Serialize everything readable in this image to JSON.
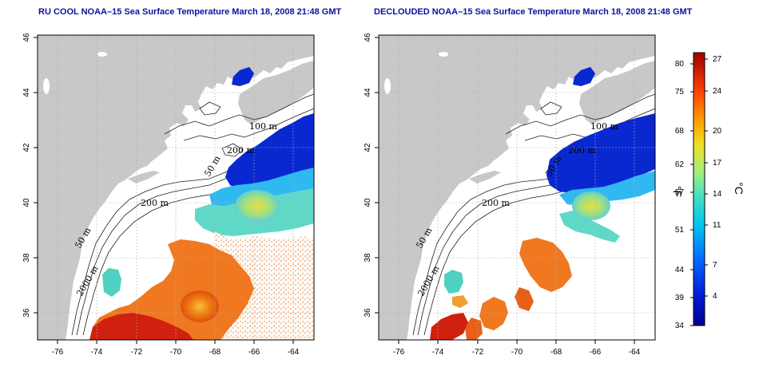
{
  "panels": [
    {
      "title": "RU COOL NOAA–15 Sea Surface Temperature March 18, 2008 21:48 GMT"
    },
    {
      "title": "DECLOUDED NOAA–15 Sea Surface Temperature March 18, 2008 21:48 GMT"
    }
  ],
  "lon_ticks": [
    "-76",
    "-74",
    "-72",
    "-70",
    "-68",
    "-66",
    "-64"
  ],
  "lat_ticks": [
    "36",
    "38",
    "40",
    "42",
    "44",
    "46"
  ],
  "isobath_labels": [
    "100 m",
    "200 m",
    "200 m",
    "50 m",
    "50 m",
    "2000 m"
  ],
  "colorbar": {
    "f_ticks": [
      "80",
      "75",
      "68",
      "62",
      "57",
      "51",
      "44",
      "39",
      "34"
    ],
    "c_ticks": [
      "27",
      "24",
      "20",
      "17",
      "14",
      "11",
      "7",
      "4"
    ],
    "f_unit": "°F",
    "c_unit": "°C"
  },
  "colors": {
    "land": "#c8c8c8",
    "title": "#1010a0",
    "cold": "#0a20c8",
    "warm": "#d83010"
  }
}
